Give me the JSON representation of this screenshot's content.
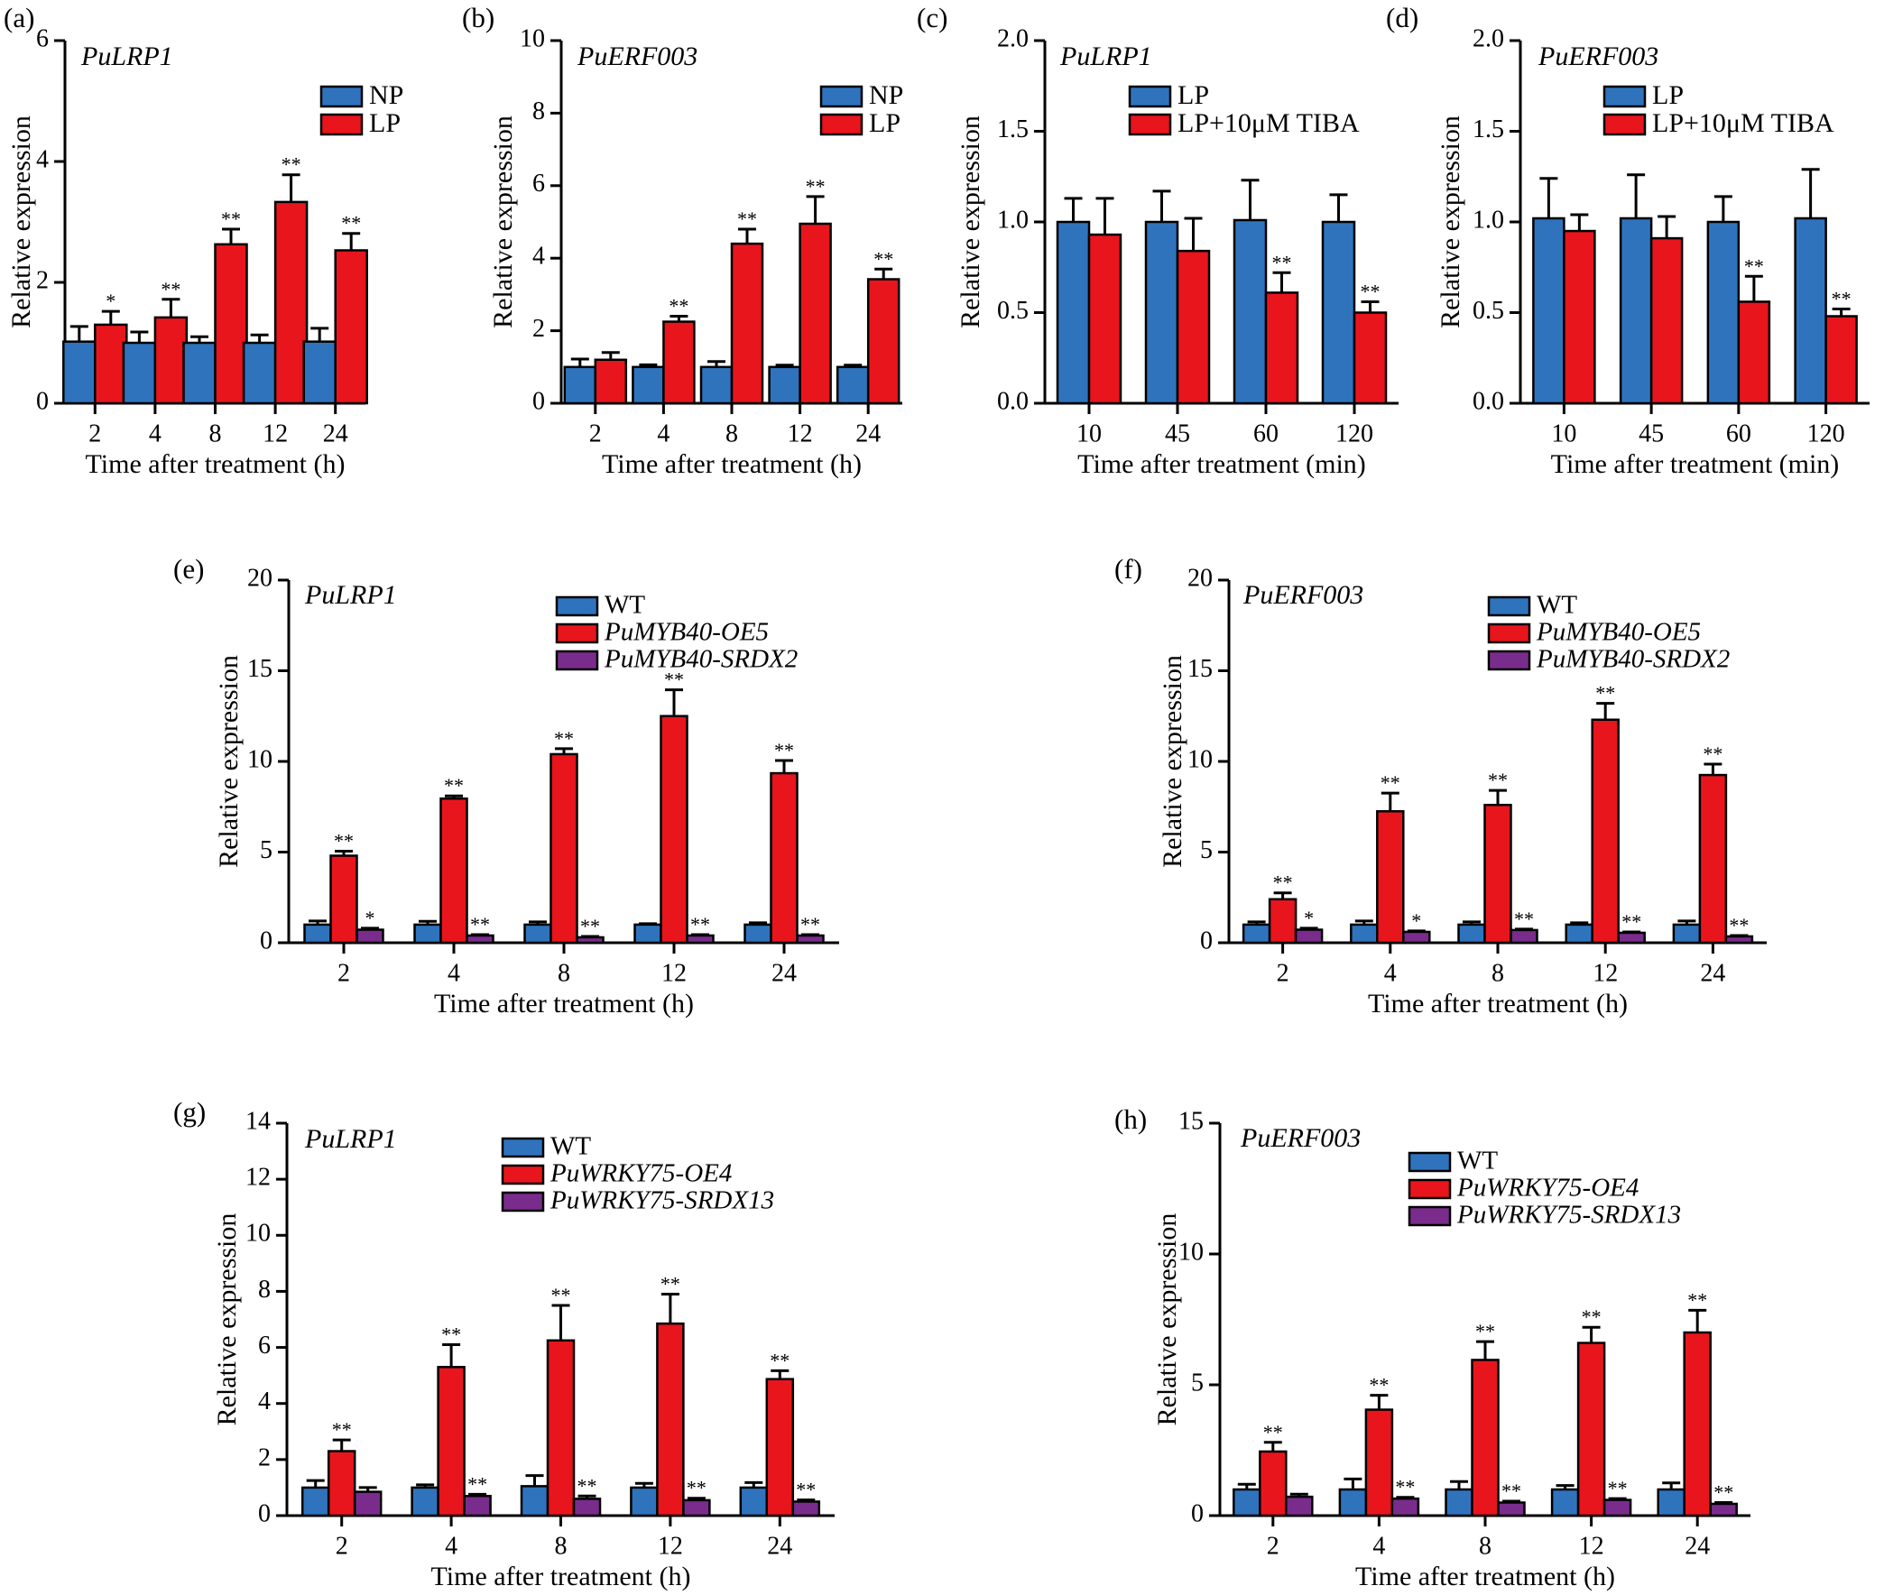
{
  "colors": {
    "blue": "#2f73bd",
    "red": "#e8151d",
    "purple": "#7a2c8c"
  },
  "chart_data": [
    {
      "panel_label": "(a)",
      "type": "bar",
      "gene": "PuLRP1",
      "categories": [
        "2",
        "4",
        "8",
        "12",
        "24"
      ],
      "xlabel": "Time after treatment (h)",
      "ylabel": "Relative expression",
      "ylim": [
        0,
        6
      ],
      "yticks": [
        "0",
        "2",
        "4",
        "6"
      ],
      "series": [
        {
          "name": "NP",
          "color": "blue",
          "values": [
            1.02,
            1.0,
            1.0,
            1.0,
            1.02
          ],
          "errors": [
            0.25,
            0.18,
            0.1,
            0.13,
            0.22
          ],
          "sig": [
            "",
            "",
            "",
            "",
            ""
          ]
        },
        {
          "name": "LP",
          "color": "red",
          "values": [
            1.3,
            1.42,
            2.63,
            3.33,
            2.53
          ],
          "errors": [
            0.22,
            0.3,
            0.25,
            0.45,
            0.28
          ],
          "sig": [
            "*",
            "**",
            "**",
            "**",
            "**"
          ]
        }
      ]
    },
    {
      "panel_label": "(b)",
      "type": "bar",
      "gene": "PuERF003",
      "categories": [
        "2",
        "4",
        "8",
        "12",
        "24"
      ],
      "xlabel": "Time after treatment (h)",
      "ylabel": "Relative expression",
      "ylim": [
        0,
        10
      ],
      "yticks": [
        "0",
        "2",
        "4",
        "6",
        "8",
        "10"
      ],
      "series": [
        {
          "name": "NP",
          "color": "blue",
          "values": [
            1.0,
            1.0,
            1.0,
            1.0,
            1.0
          ],
          "errors": [
            0.22,
            0.06,
            0.15,
            0.05,
            0.05
          ],
          "sig": [
            "",
            "",
            "",
            "",
            ""
          ]
        },
        {
          "name": "LP",
          "color": "red",
          "values": [
            1.2,
            2.25,
            4.4,
            4.95,
            3.42
          ],
          "errors": [
            0.2,
            0.15,
            0.4,
            0.75,
            0.28
          ],
          "sig": [
            "",
            "**",
            "**",
            "**",
            "**"
          ]
        }
      ]
    },
    {
      "panel_label": "(c)",
      "type": "bar",
      "gene": "PuLRP1",
      "categories": [
        "10",
        "45",
        "60",
        "120"
      ],
      "xlabel": "Time after treatment (min)",
      "ylabel": "Relative expression",
      "ylim": [
        0,
        2.0
      ],
      "yticks": [
        "0.0",
        "0.5",
        "1.0",
        "1.5",
        "2.0"
      ],
      "series": [
        {
          "name": "LP",
          "color": "blue",
          "values": [
            1.0,
            1.0,
            1.01,
            1.0
          ],
          "errors": [
            0.13,
            0.17,
            0.22,
            0.15
          ],
          "sig": [
            "",
            "",
            "",
            ""
          ]
        },
        {
          "name": "LP+10μM TIBA",
          "color": "red",
          "values": [
            0.93,
            0.84,
            0.61,
            0.5
          ],
          "errors": [
            0.2,
            0.18,
            0.11,
            0.06
          ],
          "sig": [
            "",
            "",
            "**",
            "**"
          ]
        }
      ]
    },
    {
      "panel_label": "(d)",
      "type": "bar",
      "gene": "PuERF003",
      "categories": [
        "10",
        "45",
        "60",
        "120"
      ],
      "xlabel": "Time after treatment (min)",
      "ylabel": "Relative expression",
      "ylim": [
        0,
        2.0
      ],
      "yticks": [
        "0.0",
        "0.5",
        "1.0",
        "1.5",
        "2.0"
      ],
      "series": [
        {
          "name": "LP",
          "color": "blue",
          "values": [
            1.02,
            1.02,
            1.0,
            1.02
          ],
          "errors": [
            0.22,
            0.24,
            0.14,
            0.27
          ],
          "sig": [
            "",
            "",
            "",
            ""
          ]
        },
        {
          "name": "LP+10μM TIBA",
          "color": "red",
          "values": [
            0.95,
            0.91,
            0.56,
            0.48
          ],
          "errors": [
            0.09,
            0.12,
            0.14,
            0.04
          ],
          "sig": [
            "",
            "",
            "**",
            "**"
          ]
        }
      ]
    },
    {
      "panel_label": "(e)",
      "type": "bar",
      "gene": "PuLRP1",
      "categories": [
        "2",
        "4",
        "8",
        "12",
        "24"
      ],
      "xlabel": "Time after treatment (h)",
      "ylabel": "Relative expression",
      "ylim": [
        0,
        20
      ],
      "yticks": [
        "0",
        "5",
        "10",
        "15",
        "20"
      ],
      "series": [
        {
          "name": "WT",
          "color": "blue",
          "values": [
            1.0,
            1.0,
            1.0,
            1.0,
            1.0
          ],
          "errors": [
            0.2,
            0.18,
            0.15,
            0.05,
            0.1
          ],
          "sig": [
            "",
            "",
            "",
            "",
            ""
          ]
        },
        {
          "name": "PuMYB40-OE5",
          "color": "red",
          "values": [
            4.8,
            7.95,
            10.4,
            12.5,
            9.35
          ],
          "errors": [
            0.25,
            0.15,
            0.3,
            1.45,
            0.7
          ],
          "sig": [
            "**",
            "**",
            "**",
            "**",
            "**"
          ]
        },
        {
          "name": "PuMYB40-SRDX2",
          "color": "purple",
          "values": [
            0.72,
            0.4,
            0.3,
            0.4,
            0.4
          ],
          "errors": [
            0.08,
            0.05,
            0.05,
            0.05,
            0.05
          ],
          "sig": [
            "*",
            "**",
            "**",
            "**",
            "**"
          ]
        }
      ]
    },
    {
      "panel_label": "(f)",
      "type": "bar",
      "gene": "PuERF003",
      "categories": [
        "2",
        "4",
        "8",
        "12",
        "24"
      ],
      "xlabel": "Time after treatment (h)",
      "ylabel": "Relative expression",
      "ylim": [
        0,
        20
      ],
      "yticks": [
        "0",
        "5",
        "10",
        "15",
        "20"
      ],
      "series": [
        {
          "name": "WT",
          "color": "blue",
          "values": [
            1.0,
            1.0,
            1.0,
            1.0,
            1.0
          ],
          "errors": [
            0.15,
            0.2,
            0.15,
            0.1,
            0.2
          ],
          "sig": [
            "",
            "",
            "",
            "",
            ""
          ]
        },
        {
          "name": "PuMYB40-OE5",
          "color": "red",
          "values": [
            2.4,
            7.25,
            7.6,
            12.3,
            9.25
          ],
          "errors": [
            0.35,
            1.0,
            0.8,
            0.9,
            0.6
          ],
          "sig": [
            "**",
            "**",
            "**",
            "**",
            "**"
          ]
        },
        {
          "name": "PuMYB40-SRDX2",
          "color": "purple",
          "values": [
            0.72,
            0.6,
            0.7,
            0.55,
            0.35
          ],
          "errors": [
            0.08,
            0.05,
            0.05,
            0.05,
            0.05
          ],
          "sig": [
            "*",
            "*",
            "**",
            "**",
            "**"
          ]
        }
      ]
    },
    {
      "panel_label": "(g)",
      "type": "bar",
      "gene": "PuLRP1",
      "categories": [
        "2",
        "4",
        "8",
        "12",
        "24"
      ],
      "xlabel": "Time after treatment (h)",
      "ylabel": "Relative expression",
      "ylim": [
        0,
        14
      ],
      "yticks": [
        "0",
        "2",
        "4",
        "6",
        "8",
        "10",
        "12",
        "14"
      ],
      "series": [
        {
          "name": "WT",
          "color": "blue",
          "values": [
            1.0,
            1.0,
            1.05,
            1.0,
            1.0
          ],
          "errors": [
            0.25,
            0.1,
            0.38,
            0.15,
            0.18
          ],
          "sig": [
            "",
            "",
            "",
            "",
            ""
          ]
        },
        {
          "name": "PuWRKY75-OE4",
          "color": "red",
          "values": [
            2.3,
            5.3,
            6.25,
            6.85,
            4.87
          ],
          "errors": [
            0.4,
            0.8,
            1.25,
            1.05,
            0.3
          ],
          "sig": [
            "**",
            "**",
            "**",
            "**",
            "**"
          ]
        },
        {
          "name": "PuWRKY75-SRDX13",
          "color": "purple",
          "values": [
            0.85,
            0.7,
            0.6,
            0.55,
            0.5
          ],
          "errors": [
            0.15,
            0.06,
            0.1,
            0.07,
            0.06
          ],
          "sig": [
            "",
            "**",
            "**",
            "**",
            "**"
          ]
        }
      ]
    },
    {
      "panel_label": "(h)",
      "type": "bar",
      "gene": "PuERF003",
      "categories": [
        "2",
        "4",
        "8",
        "12",
        "24"
      ],
      "xlabel": "Time after treatment (h)",
      "ylabel": "Relative expression",
      "ylim": [
        0,
        15
      ],
      "yticks": [
        "0",
        "5",
        "10",
        "15"
      ],
      "series": [
        {
          "name": "WT",
          "color": "blue",
          "values": [
            1.0,
            1.0,
            1.0,
            1.0,
            1.0
          ],
          "errors": [
            0.2,
            0.4,
            0.3,
            0.15,
            0.25
          ],
          "sig": [
            "",
            "",
            "",
            "",
            ""
          ]
        },
        {
          "name": "PuWRKY75-OE4",
          "color": "red",
          "values": [
            2.45,
            4.05,
            5.95,
            6.6,
            7.0
          ],
          "errors": [
            0.35,
            0.55,
            0.7,
            0.6,
            0.85
          ],
          "sig": [
            "**",
            "**",
            "**",
            "**",
            "**"
          ]
        },
        {
          "name": "PuWRKY75-SRDX13",
          "color": "purple",
          "values": [
            0.72,
            0.65,
            0.5,
            0.6,
            0.45
          ],
          "errors": [
            0.1,
            0.05,
            0.05,
            0.05,
            0.05
          ],
          "sig": [
            "",
            "**",
            "**",
            "**",
            "**"
          ]
        }
      ]
    }
  ]
}
